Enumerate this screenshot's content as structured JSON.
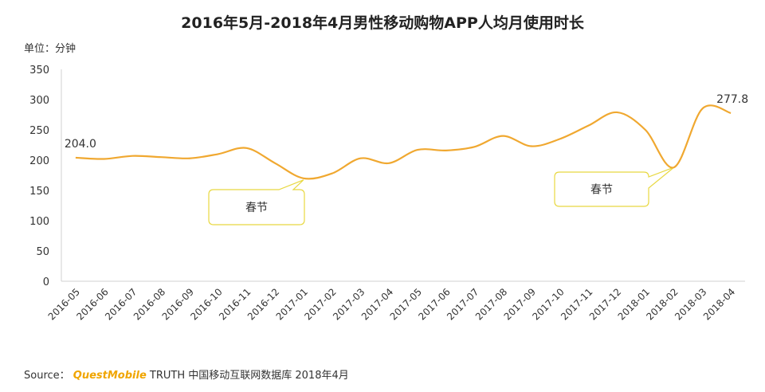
{
  "chart_data": {
    "type": "line",
    "title": "2016年5月-2018年4月男性移动购物APP人均月使用时长",
    "unit_label": "单位：分钟",
    "categories": [
      "2016-05",
      "2016-06",
      "2016-07",
      "2016-08",
      "2016-09",
      "2016-10",
      "2016-11",
      "2016-12",
      "2017-01",
      "2017-02",
      "2017-03",
      "2017-04",
      "2017-05",
      "2017-06",
      "2017-07",
      "2017-08",
      "2017-09",
      "2017-10",
      "2017-11",
      "2017-12",
      "2018-01",
      "2018-02",
      "2018-03",
      "2018-04"
    ],
    "series": [
      {
        "values": [
          204.0,
          202,
          207,
          205,
          203,
          210,
          220,
          195,
          170,
          178,
          203,
          195,
          217,
          216,
          222,
          240,
          223,
          235,
          257,
          279,
          250,
          188,
          285,
          277.8
        ],
        "color": "#f0a830"
      }
    ],
    "data_labels": [
      {
        "index": 0,
        "text": "204.0"
      },
      {
        "index": 23,
        "text": "277.8"
      }
    ],
    "yticks": [
      0,
      50,
      100,
      150,
      200,
      250,
      300,
      350
    ],
    "ylim": [
      0,
      350
    ],
    "grid": false,
    "annotations": [
      {
        "text": "春节",
        "target_index": 8
      },
      {
        "text": "春节",
        "target_index": 21
      }
    ]
  },
  "source": {
    "prefix": "Source：",
    "brand": "QuestMobile",
    "rest": " TRUTH 中国移动互联网数据库 2018年4月"
  }
}
